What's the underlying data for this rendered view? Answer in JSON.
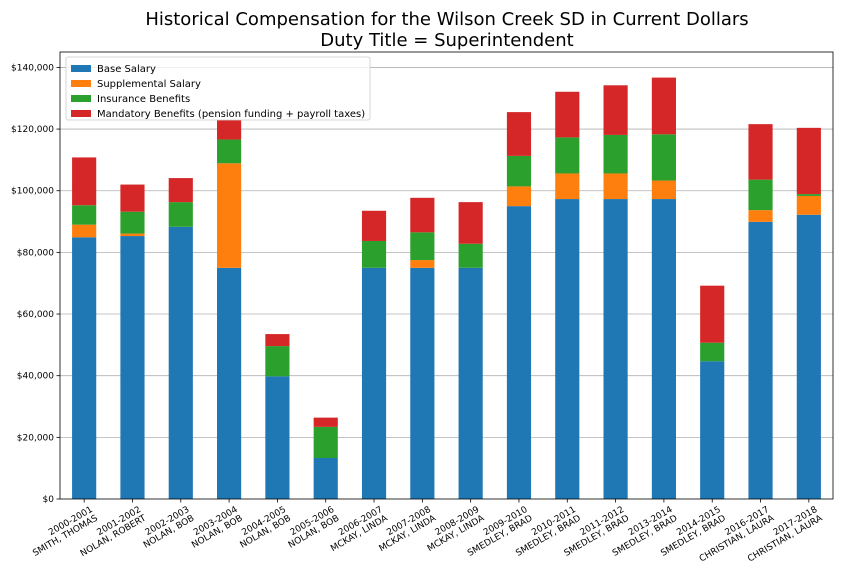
{
  "chart_data": {
    "type": "bar",
    "stacked": true,
    "title": "Historical Compensation for the Wilson Creek SD in Current Dollars",
    "subtitle": "Duty Title = Superintendent",
    "xlabel": "",
    "ylabel": "",
    "ylim": [
      0,
      145000
    ],
    "yticks": [
      0,
      20000,
      40000,
      60000,
      80000,
      100000,
      120000,
      140000
    ],
    "ytick_labels": [
      "$0",
      "$20,000",
      "$40,000",
      "$60,000",
      "$80,000",
      "$100,000",
      "$120,000",
      "$140,000"
    ],
    "grid": true,
    "legend_position": "top-left",
    "categories": [
      [
        "2000-2001",
        "SMITH, THOMAS"
      ],
      [
        "2001-2002",
        "NOLAN, ROBERT"
      ],
      [
        "2002-2003",
        "NOLAN, BOB"
      ],
      [
        "2003-2004",
        "NOLAN, BOB"
      ],
      [
        "2004-2005",
        "NOLAN, BOB"
      ],
      [
        "2005-2006",
        "NOLAN, BOB"
      ],
      [
        "2006-2007",
        "MCKAY, LINDA"
      ],
      [
        "2007-2008",
        "MCKAY, LINDA"
      ],
      [
        "2008-2009",
        "MCKAY, LINDA"
      ],
      [
        "2009-2010",
        "SMEDLEY, BRAD"
      ],
      [
        "2010-2011",
        "SMEDLEY, BRAD"
      ],
      [
        "2011-2012",
        "SMEDLEY, BRAD"
      ],
      [
        "2013-2014",
        "SMEDLEY, BRAD"
      ],
      [
        "2014-2015",
        "SMEDLEY, BRAD"
      ],
      [
        "2016-2017",
        "CHRISTIAN, LAURA"
      ],
      [
        "2017-2018",
        "CHRISTIAN, LAURA"
      ]
    ],
    "series": [
      {
        "name": "Base Salary",
        "color": "#1f77b4",
        "values": [
          84900,
          85300,
          88300,
          75000,
          39800,
          13300,
          75000,
          75000,
          75000,
          95000,
          97300,
          97300,
          97300,
          44700,
          89900,
          92200
        ]
      },
      {
        "name": "Supplemental Salary",
        "color": "#ff7f0e",
        "values": [
          4100,
          800,
          0,
          33900,
          0,
          0,
          0,
          2500,
          0,
          6400,
          8300,
          8300,
          6000,
          0,
          3800,
          6100
        ]
      },
      {
        "name": "Insurance Benefits",
        "color": "#2ca02c",
        "values": [
          6300,
          7100,
          8000,
          7700,
          9800,
          10100,
          8700,
          9000,
          7800,
          9900,
          11700,
          12500,
          15000,
          6000,
          9900,
          600
        ]
      },
      {
        "name": "Mandatory Benefits (pension funding + payroll taxes)",
        "color": "#d62728",
        "values": [
          15500,
          8800,
          7800,
          6300,
          3900,
          3000,
          9800,
          11200,
          13500,
          14200,
          14800,
          16100,
          18400,
          18500,
          18000,
          21500
        ]
      }
    ]
  }
}
